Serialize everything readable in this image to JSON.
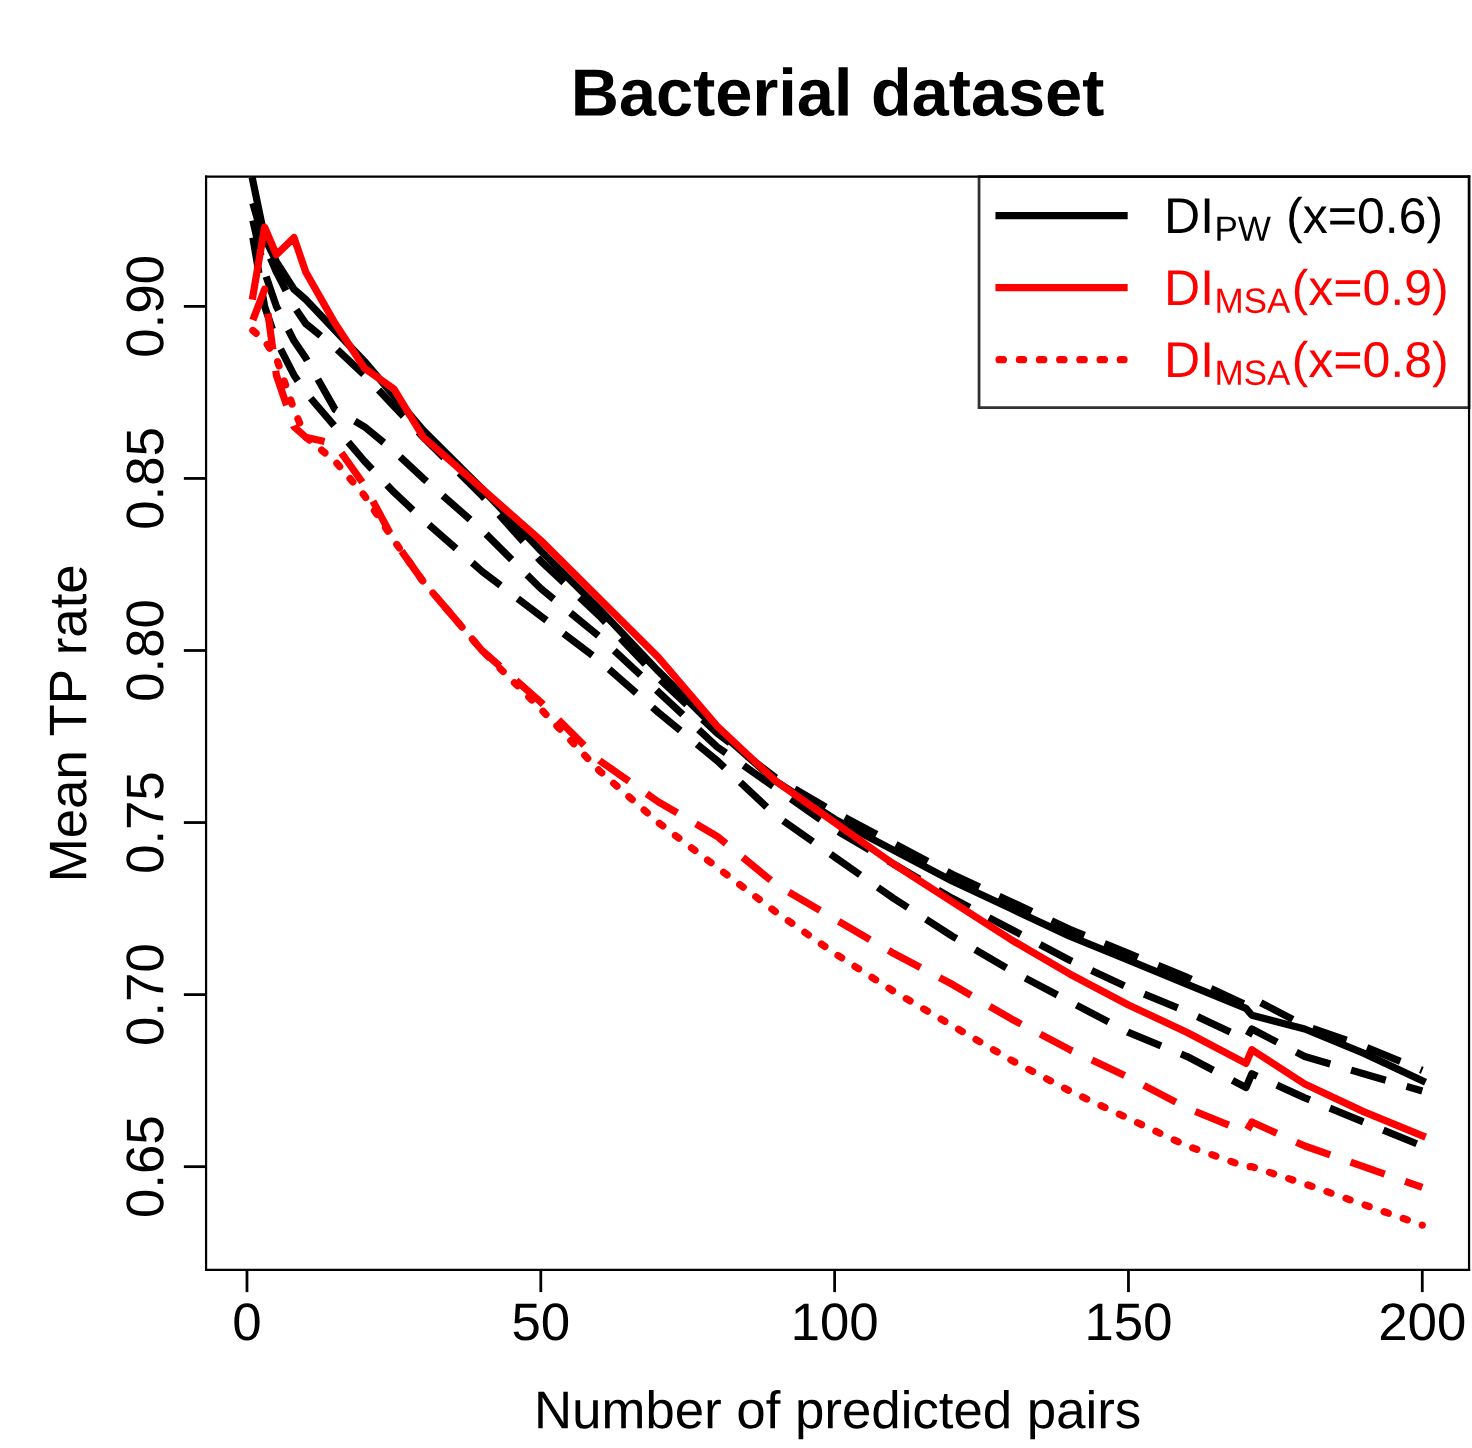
{
  "chart_data": {
    "type": "line",
    "title": "Bacterial dataset",
    "xlabel": "Number of predicted pairs",
    "ylabel": "Mean TP rate",
    "xlim": [
      -6.96,
      207.96
    ],
    "ylim": [
      0.62,
      0.9377
    ],
    "xticks": [
      0,
      50,
      100,
      150,
      200
    ],
    "yticks": [
      0.65,
      {
        "value": 0.7,
        "label": "0.70"
      },
      0.75,
      {
        "value": 0.8,
        "label": "0.80"
      },
      0.85,
      {
        "value": 0.9,
        "label": "0.90"
      }
    ],
    "grid": false,
    "legend": "top right",
    "marker": "none",
    "x": [
      1,
      3,
      5,
      8,
      10,
      15,
      20,
      25,
      30,
      40,
      50,
      60,
      70,
      80,
      90,
      100,
      110,
      120,
      130,
      140,
      150,
      160,
      170,
      171,
      180,
      190,
      200
    ],
    "series": [
      {
        "name": "DI$_{PW}$ (x=0.6)",
        "color": "#000000",
        "line_style": "solid",
        "values": [
          0.9365,
          0.92,
          0.913,
          0.905,
          0.902,
          0.893,
          0.884,
          0.874,
          0.864,
          0.847,
          0.829,
          0.812,
          0.794,
          0.777,
          0.762,
          0.751,
          0.742,
          0.733,
          0.725,
          0.717,
          0.71,
          0.703,
          0.696,
          0.694,
          0.69,
          0.683,
          0.675
        ]
      },
      {
        "color": "#000000",
        "line_style": "dashed",
        "values": [
          0.93,
          0.918,
          0.91,
          0.9,
          0.895,
          0.888,
          0.88,
          0.871,
          0.862,
          0.845,
          0.826,
          0.81,
          0.792,
          0.776,
          0.763,
          0.753,
          0.744,
          0.735,
          0.727,
          0.719,
          0.712,
          0.705,
          0.697,
          0.699,
          0.691,
          0.685,
          0.678
        ]
      },
      {
        "color": "#000000",
        "line_style": "dashed",
        "values": [
          0.925,
          0.91,
          0.9,
          0.89,
          0.885,
          0.87,
          0.865,
          0.858,
          0.85,
          0.835,
          0.818,
          0.804,
          0.788,
          0.772,
          0.76,
          0.748,
          0.738,
          0.728,
          0.719,
          0.71,
          0.702,
          0.695,
          0.687,
          0.69,
          0.682,
          0.677,
          0.672
        ]
      },
      {
        "color": "#000000",
        "line_style": "dashed",
        "values": [
          0.92,
          0.9,
          0.89,
          0.88,
          0.875,
          0.865,
          0.855,
          0.846,
          0.838,
          0.823,
          0.81,
          0.797,
          0.782,
          0.768,
          0.752,
          0.74,
          0.728,
          0.717,
          0.707,
          0.698,
          0.689,
          0.682,
          0.673,
          0.677,
          0.67,
          0.663,
          0.656
        ]
      },
      {
        "name": "DI$_{MSA}$(x=0.9)",
        "color": "#ff0000",
        "line_style": "solid",
        "values": [
          0.903,
          0.923,
          0.915,
          0.92,
          0.91,
          0.895,
          0.882,
          0.876,
          0.862,
          0.847,
          0.832,
          0.815,
          0.798,
          0.778,
          0.762,
          0.75,
          0.738,
          0.727,
          0.716,
          0.706,
          0.697,
          0.689,
          0.68,
          0.684,
          0.674,
          0.666,
          0.659
        ]
      },
      {
        "color": "#ff0000",
        "line_style": "dashed",
        "values": [
          0.896,
          0.905,
          0.88,
          0.865,
          0.862,
          0.86,
          0.848,
          0.832,
          0.82,
          0.8,
          0.785,
          0.768,
          0.756,
          0.746,
          0.732,
          0.722,
          0.712,
          0.703,
          0.693,
          0.684,
          0.676,
          0.667,
          0.66,
          0.663,
          0.656,
          0.65,
          0.644
        ]
      },
      {
        "name": "DI$_{MSA}$(x=0.8)",
        "color": "#ff0000",
        "line_style": "dotted",
        "values": [
          0.893,
          0.89,
          0.885,
          0.87,
          0.862,
          0.855,
          0.845,
          0.832,
          0.82,
          0.8,
          0.783,
          0.765,
          0.75,
          0.737,
          0.724,
          0.712,
          0.701,
          0.691,
          0.681,
          0.672,
          0.664,
          0.656,
          0.65,
          0.65,
          0.645,
          0.639,
          0.633
        ]
      }
    ]
  }
}
